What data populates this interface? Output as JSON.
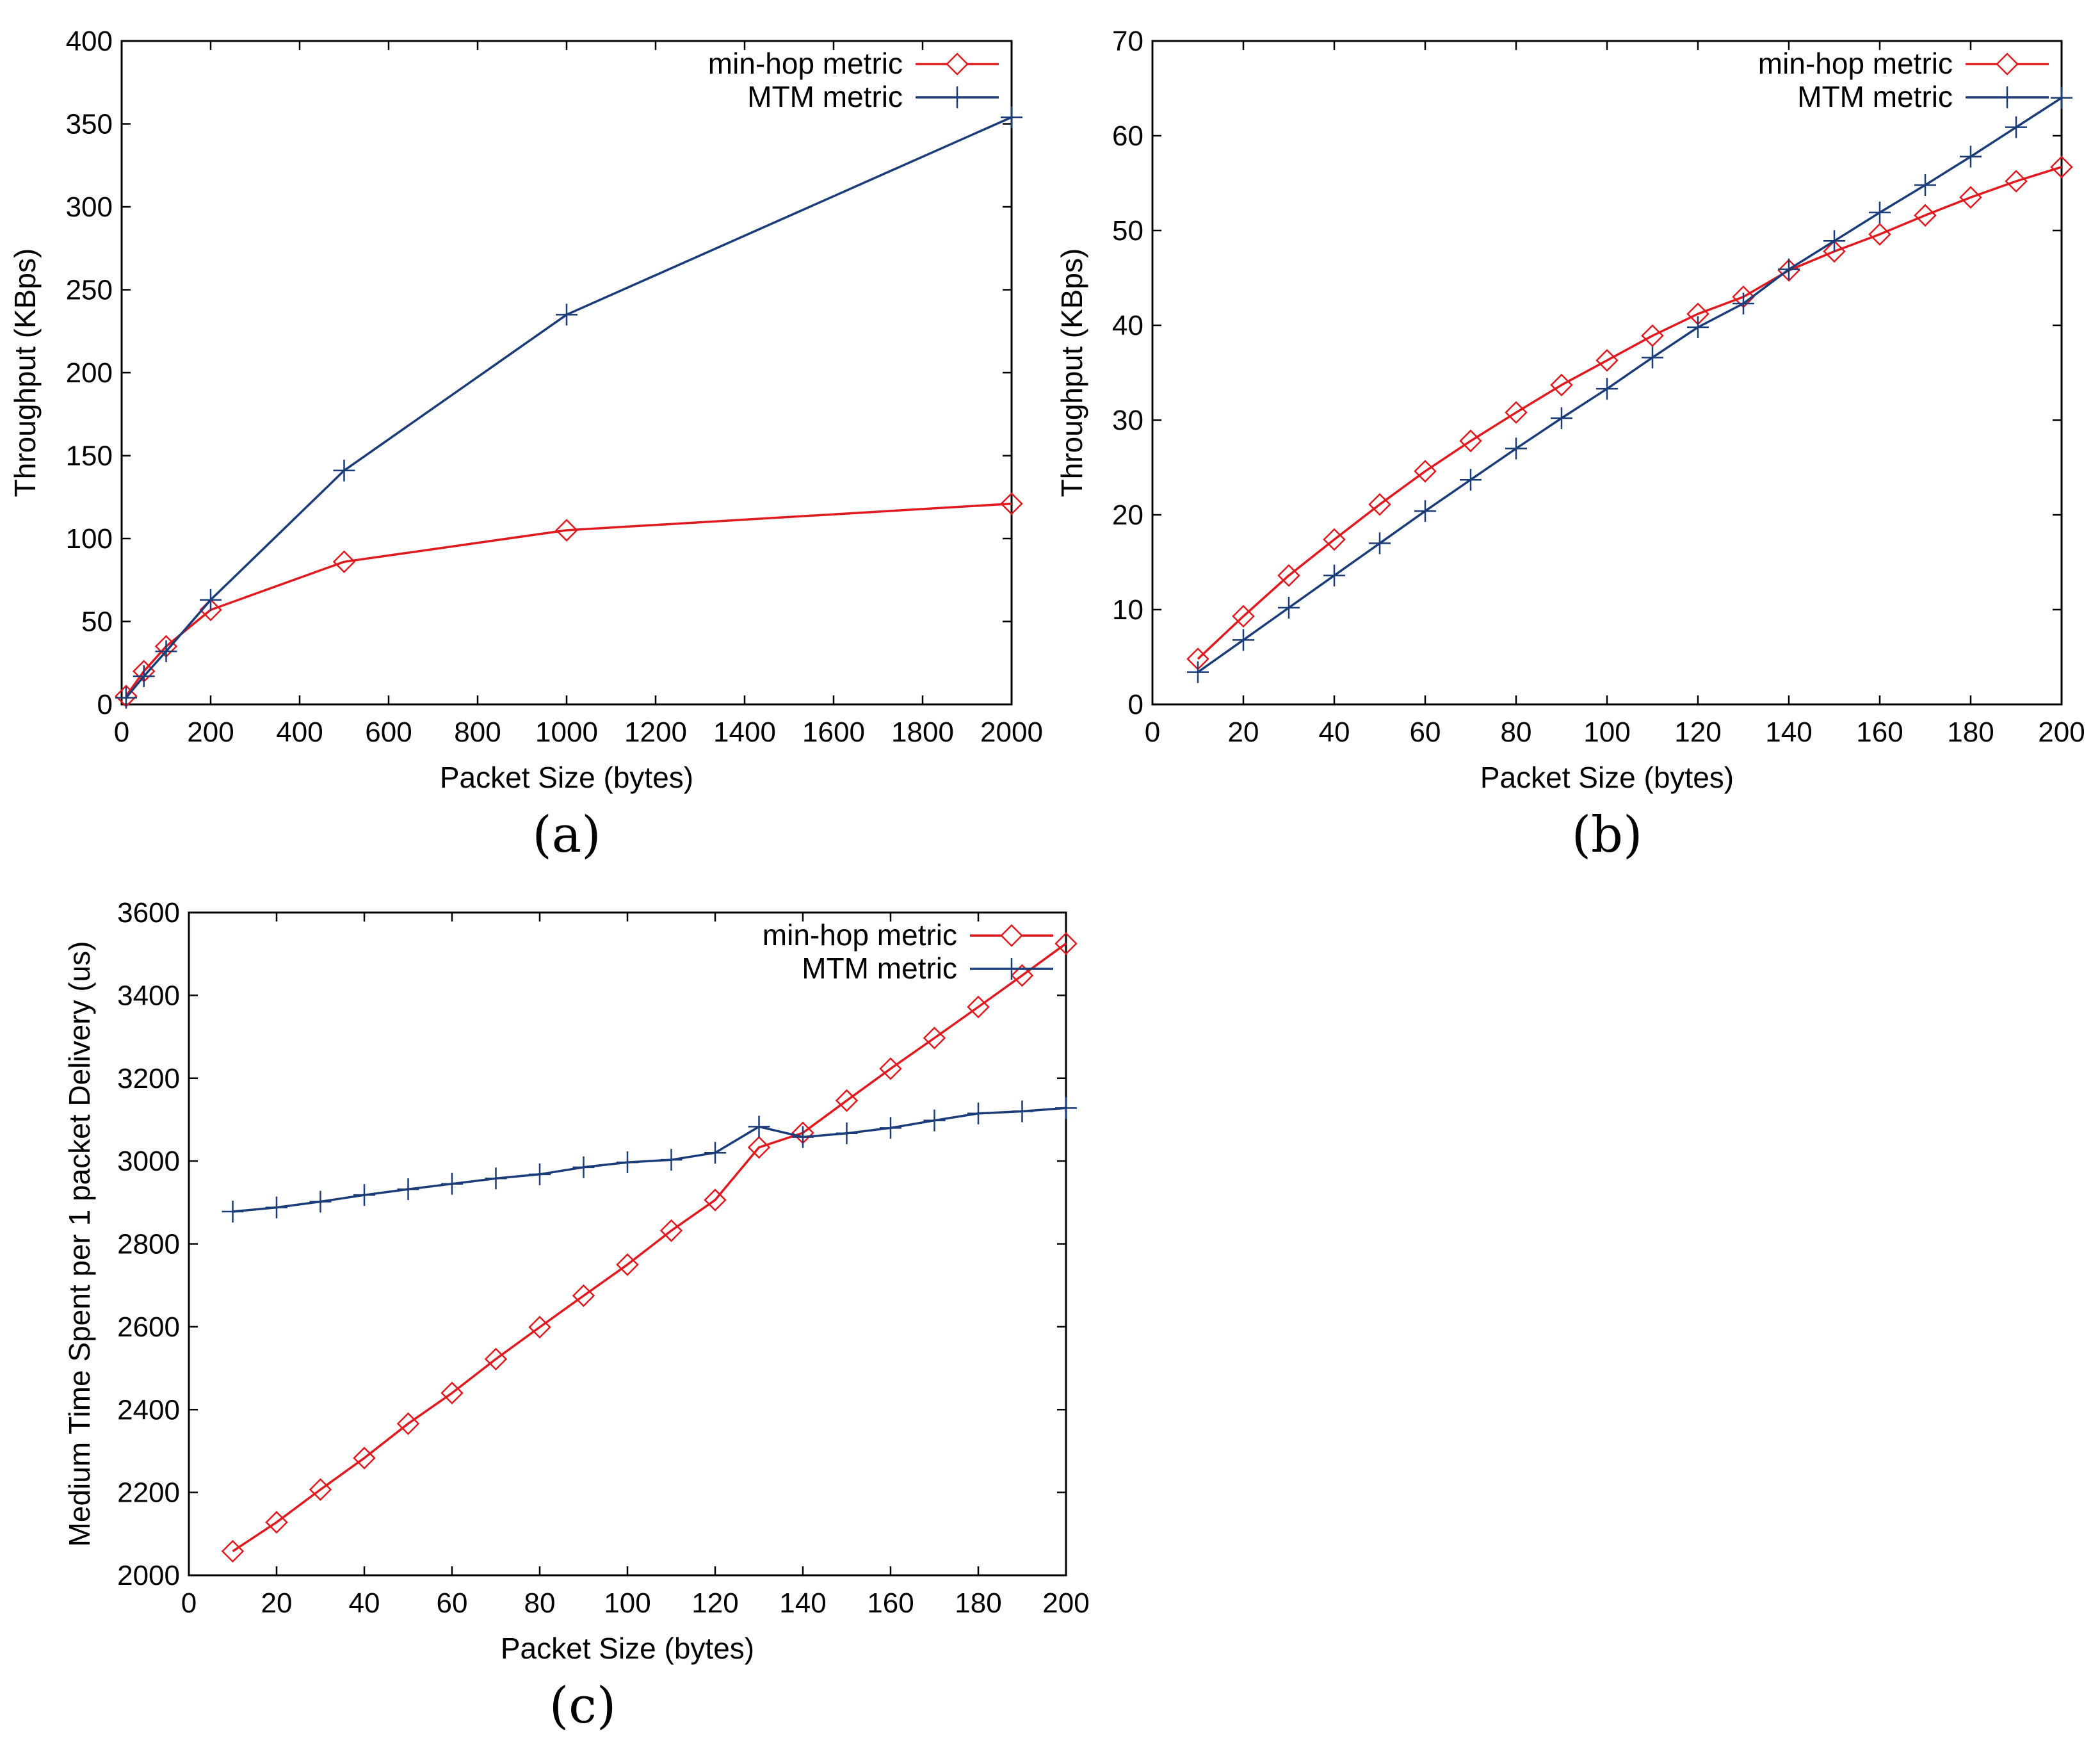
{
  "colors": {
    "min_hop": "#e0191f",
    "mtm": "#1a3c78",
    "axis": "#000000"
  },
  "chart_data": [
    {
      "id": "a",
      "panel_label": "(a)",
      "type": "line",
      "title": "",
      "xlabel": "Packet Size (bytes)",
      "ylabel": "Throughput (KBps)",
      "xlim": [
        0,
        2000
      ],
      "ylim": [
        0,
        400
      ],
      "xticks": [
        0,
        200,
        400,
        600,
        800,
        1000,
        1200,
        1400,
        1600,
        1800,
        2000
      ],
      "yticks": [
        0,
        50,
        100,
        150,
        200,
        250,
        300,
        350,
        400
      ],
      "legend": "top-right",
      "series": [
        {
          "name": "min-hop metric",
          "marker": "diamond",
          "color": "#e0191f",
          "x": [
            10,
            50,
            100,
            200,
            500,
            1000,
            2000
          ],
          "y": [
            5,
            20,
            35,
            57,
            86,
            105,
            121
          ]
        },
        {
          "name": "MTM metric",
          "marker": "plus",
          "color": "#1a3c78",
          "x": [
            10,
            50,
            100,
            200,
            500,
            1000,
            2000
          ],
          "y": [
            4,
            17,
            32,
            63,
            141,
            235,
            354
          ]
        }
      ]
    },
    {
      "id": "b",
      "panel_label": "(b)",
      "type": "line",
      "title": "",
      "xlabel": "Packet Size (bytes)",
      "ylabel": "Throughput (KBps)",
      "xlim": [
        0,
        200
      ],
      "ylim": [
        0,
        70
      ],
      "xticks": [
        0,
        20,
        40,
        60,
        80,
        100,
        120,
        140,
        160,
        180,
        200
      ],
      "yticks": [
        0,
        10,
        20,
        30,
        40,
        50,
        60,
        70
      ],
      "legend": "top-right",
      "series": [
        {
          "name": "min-hop metric",
          "marker": "diamond",
          "color": "#e0191f",
          "x": [
            10,
            20,
            30,
            40,
            50,
            60,
            70,
            80,
            90,
            100,
            110,
            120,
            130,
            140,
            150,
            160,
            170,
            180,
            190,
            200
          ],
          "y": [
            4.8,
            9.3,
            13.6,
            17.4,
            21.1,
            24.6,
            27.8,
            30.8,
            33.7,
            36.3,
            38.9,
            41.2,
            43.0,
            45.8,
            47.8,
            49.6,
            51.6,
            53.5,
            55.2,
            56.7
          ]
        },
        {
          "name": "MTM metric",
          "marker": "plus",
          "color": "#1a3c78",
          "x": [
            10,
            20,
            30,
            40,
            50,
            60,
            70,
            80,
            90,
            100,
            110,
            120,
            130,
            140,
            150,
            160,
            170,
            180,
            190,
            200
          ],
          "y": [
            3.4,
            6.8,
            10.2,
            13.6,
            17.0,
            20.4,
            23.7,
            27.0,
            30.2,
            33.3,
            36.6,
            39.8,
            42.3,
            45.9,
            48.9,
            51.9,
            54.8,
            57.8,
            60.9,
            64.0
          ]
        }
      ]
    },
    {
      "id": "c",
      "panel_label": "(c)",
      "type": "line",
      "title": "",
      "xlabel": "Packet Size (bytes)",
      "ylabel": "Medium Time Spent per 1 packet Delivery (us)",
      "xlim": [
        0,
        200
      ],
      "ylim": [
        2000,
        3600
      ],
      "xticks": [
        0,
        20,
        40,
        60,
        80,
        100,
        120,
        140,
        160,
        180,
        200
      ],
      "yticks": [
        2000,
        2200,
        2400,
        2600,
        2800,
        3000,
        3200,
        3400,
        3600
      ],
      "legend": "top-right",
      "series": [
        {
          "name": "min-hop metric",
          "marker": "diamond",
          "color": "#e0191f",
          "x": [
            10,
            20,
            30,
            40,
            50,
            60,
            70,
            80,
            90,
            100,
            110,
            120,
            130,
            140,
            150,
            160,
            170,
            180,
            190,
            200
          ],
          "y": [
            2058,
            2128,
            2207,
            2283,
            2366,
            2440,
            2522,
            2599,
            2675,
            2750,
            2832,
            2906,
            3033,
            3068,
            3146,
            3223,
            3297,
            3372,
            3448,
            3525
          ]
        },
        {
          "name": "MTM metric",
          "marker": "plus",
          "color": "#1a3c78",
          "x": [
            10,
            20,
            30,
            40,
            50,
            60,
            70,
            80,
            90,
            100,
            110,
            120,
            130,
            140,
            150,
            160,
            170,
            180,
            190,
            200
          ],
          "y": [
            2878,
            2888,
            2902,
            2918,
            2932,
            2945,
            2958,
            2968,
            2985,
            2997,
            3003,
            3020,
            3083,
            3058,
            3067,
            3080,
            3098,
            3115,
            3120,
            3128
          ]
        }
      ]
    }
  ]
}
